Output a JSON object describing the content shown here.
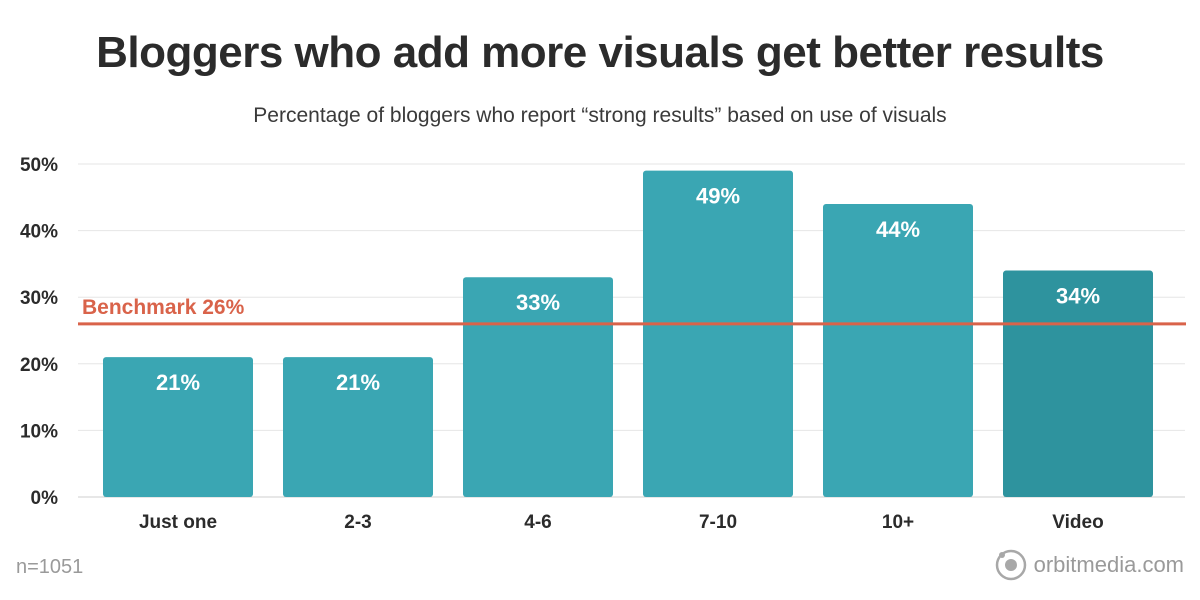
{
  "title": "Bloggers who add more visuals get better results",
  "subtitle": "Percentage of bloggers who report “strong results” based on use of visuals",
  "footnote": "n=1051",
  "brand": "orbitmedia.com",
  "colors": {
    "bar": "#3aa6b3",
    "bar_highlight": "#2e939e",
    "benchmark": "#d9634a",
    "grid": "#e6e6e6",
    "axis_text": "#2b2b2b"
  },
  "chart_data": {
    "type": "bar",
    "categories": [
      "Just one",
      "2-3",
      "4-6",
      "7-10",
      "10+",
      "Video"
    ],
    "values": [
      21,
      21,
      33,
      49,
      44,
      34
    ],
    "value_labels": [
      "21%",
      "21%",
      "33%",
      "49%",
      "44%",
      "34%"
    ],
    "highlight": [
      "Video"
    ],
    "ylim": [
      0,
      50
    ],
    "yticks": [
      0,
      10,
      20,
      30,
      40,
      50
    ],
    "ytick_labels": [
      "0%",
      "10%",
      "20%",
      "30%",
      "40%",
      "50%"
    ],
    "grid": true,
    "benchmark": {
      "value": 26,
      "label": "Benchmark 26%"
    },
    "xlabel": "",
    "ylabel": ""
  }
}
